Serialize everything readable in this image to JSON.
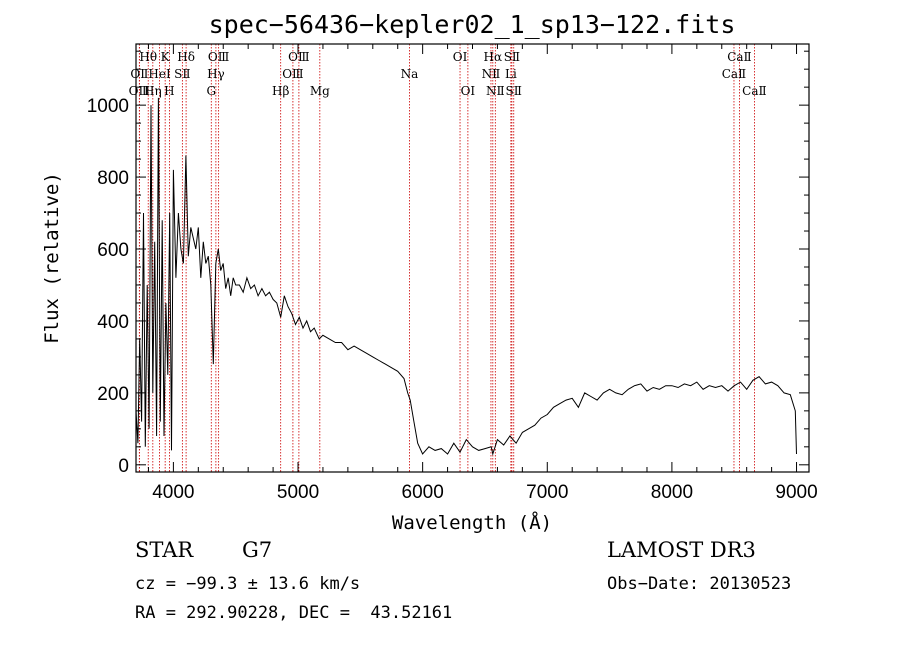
{
  "chart_data": {
    "type": "line",
    "title": "spec−56436−kepler02_1_sp13−122.fits",
    "xlabel": "Wavelength (Å)",
    "ylabel": "Flux (relative)",
    "xlim": [
      3700,
      9100
    ],
    "ylim": [
      -20,
      1170
    ],
    "xticks": [
      4000,
      5000,
      6000,
      7000,
      8000,
      9000
    ],
    "yticks": [
      0,
      200,
      400,
      600,
      800,
      1000
    ],
    "xtick_labels": [
      "4000",
      "5000",
      "6000",
      "7000",
      "8000",
      "9000"
    ],
    "ytick_labels": [
      "0",
      "200",
      "400",
      "600",
      "800",
      "1000"
    ],
    "grid": false,
    "series": [
      {
        "name": "flux",
        "x": [
          3700,
          3715,
          3730,
          3745,
          3760,
          3775,
          3790,
          3805,
          3820,
          3835,
          3850,
          3865,
          3880,
          3895,
          3910,
          3925,
          3940,
          3955,
          3970,
          3985,
          4000,
          4020,
          4040,
          4060,
          4080,
          4100,
          4120,
          4140,
          4160,
          4180,
          4200,
          4220,
          4240,
          4260,
          4280,
          4300,
          4320,
          4340,
          4360,
          4380,
          4400,
          4420,
          4440,
          4460,
          4480,
          4500,
          4530,
          4560,
          4590,
          4620,
          4650,
          4680,
          4710,
          4740,
          4770,
          4800,
          4830,
          4861,
          4890,
          4920,
          4950,
          4980,
          5010,
          5040,
          5070,
          5100,
          5130,
          5170,
          5200,
          5250,
          5300,
          5350,
          5400,
          5450,
          5500,
          5550,
          5600,
          5650,
          5700,
          5750,
          5800,
          5850,
          5880,
          5900,
          5930,
          5960,
          6000,
          6050,
          6100,
          6150,
          6200,
          6250,
          6300,
          6350,
          6400,
          6450,
          6500,
          6550,
          6563,
          6600,
          6650,
          6700,
          6750,
          6800,
          6850,
          6900,
          6950,
          7000,
          7050,
          7100,
          7150,
          7200,
          7250,
          7300,
          7350,
          7400,
          7450,
          7500,
          7550,
          7600,
          7650,
          7700,
          7750,
          7800,
          7850,
          7900,
          7950,
          8000,
          8050,
          8100,
          8150,
          8200,
          8250,
          8300,
          8350,
          8400,
          8450,
          8500,
          8550,
          8600,
          8650,
          8700,
          8750,
          8800,
          8850,
          8900,
          8950,
          8990,
          9000
        ],
        "values": [
          150,
          60,
          350,
          120,
          700,
          50,
          500,
          100,
          1000,
          200,
          620,
          80,
          1020,
          120,
          680,
          80,
          450,
          250,
          700,
          40,
          820,
          520,
          700,
          600,
          560,
          860,
          580,
          660,
          630,
          600,
          660,
          520,
          620,
          560,
          580,
          500,
          280,
          560,
          600,
          540,
          560,
          490,
          520,
          470,
          520,
          500,
          500,
          480,
          520,
          490,
          500,
          470,
          490,
          470,
          480,
          460,
          450,
          410,
          470,
          440,
          420,
          390,
          410,
          380,
          400,
          370,
          380,
          350,
          360,
          350,
          340,
          340,
          320,
          330,
          320,
          310,
          300,
          290,
          280,
          270,
          260,
          240,
          200,
          180,
          120,
          60,
          30,
          50,
          40,
          45,
          30,
          60,
          35,
          70,
          50,
          40,
          45,
          50,
          30,
          70,
          55,
          80,
          60,
          90,
          100,
          110,
          130,
          140,
          160,
          170,
          180,
          185,
          160,
          200,
          190,
          180,
          200,
          210,
          200,
          195,
          210,
          220,
          225,
          205,
          215,
          210,
          220,
          220,
          215,
          225,
          220,
          230,
          210,
          220,
          215,
          220,
          205,
          220,
          230,
          210,
          235,
          245,
          225,
          230,
          220,
          200,
          195,
          150,
          30
        ]
      }
    ],
    "spectral_lines": [
      {
        "label": "OⅡ",
        "wl": 3727,
        "row": 2
      },
      {
        "label": "OⅢ",
        "wl": 3727,
        "row": 3
      },
      {
        "label": "Hθ",
        "wl": 3798,
        "row": 1
      },
      {
        "label": "Hη",
        "wl": 3835,
        "row": 3
      },
      {
        "label": "HeⅠ",
        "wl": 3889,
        "row": 2
      },
      {
        "label": "K",
        "wl": 3934,
        "row": 1
      },
      {
        "label": "H",
        "wl": 3968,
        "row": 3
      },
      {
        "label": "SⅡ",
        "wl": 4072,
        "row": 2
      },
      {
        "label": "Hδ",
        "wl": 4102,
        "row": 1
      },
      {
        "label": "G",
        "wl": 4304,
        "row": 3
      },
      {
        "label": "Hγ",
        "wl": 4341,
        "row": 2
      },
      {
        "label": "OⅢ",
        "wl": 4363,
        "row": 1
      },
      {
        "label": "Hβ",
        "wl": 4861,
        "row": 3
      },
      {
        "label": "OⅢ",
        "wl": 4959,
        "row": 2
      },
      {
        "label": "OⅢ",
        "wl": 5007,
        "row": 1
      },
      {
        "label": "Mg",
        "wl": 5175,
        "row": 3
      },
      {
        "label": "Na",
        "wl": 5894,
        "row": 2
      },
      {
        "label": "OⅠ",
        "wl": 6300,
        "row": 1
      },
      {
        "label": "OⅠ",
        "wl": 6363,
        "row": 3
      },
      {
        "label": "NⅡ",
        "wl": 6548,
        "row": 2
      },
      {
        "label": "Hα",
        "wl": 6563,
        "row": 1
      },
      {
        "label": "NⅡ",
        "wl": 6583,
        "row": 3
      },
      {
        "label": "Li",
        "wl": 6708,
        "row": 2
      },
      {
        "label": "SⅡ",
        "wl": 6716,
        "row": 1
      },
      {
        "label": "SⅡ",
        "wl": 6731,
        "row": 3
      },
      {
        "label": "CaⅡ",
        "wl": 8498,
        "row": 2
      },
      {
        "label": "CaⅡ",
        "wl": 8542,
        "row": 1
      },
      {
        "label": "CaⅡ",
        "wl": 8662,
        "row": 3
      }
    ]
  },
  "info": {
    "object_class": "STAR",
    "subclass": "G7",
    "survey": "LAMOST DR3",
    "redshift": "cz = −99.3 ± 13.6 km/s",
    "obs_date": "Obs−Date: 20130523",
    "coords": "RA = 292.90228, DEC =  43.52161"
  },
  "colors": {
    "spectrum": "#000000",
    "line_marker": "#cc0000",
    "axes": "#000000",
    "background": "#ffffff"
  }
}
